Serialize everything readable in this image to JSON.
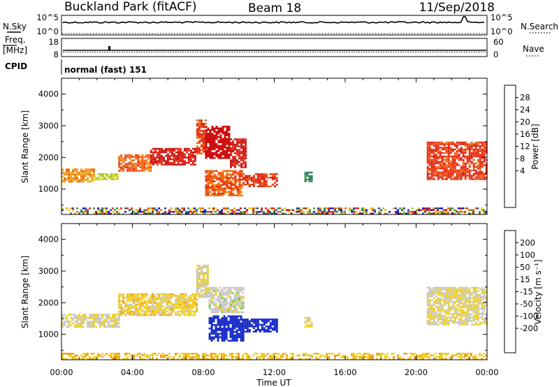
{
  "header": {
    "title": "Buckland Park (fitACF)",
    "beam": "Beam 18",
    "date": "11/Sep/2018"
  },
  "top_panels": {
    "nsky_label": "N.Sky",
    "nsky_ticks": [
      "10^5",
      "10^0"
    ],
    "nsearch_label": "N.Search",
    "nsearch_ticks": [
      "10^5",
      "10^0"
    ],
    "freq_label": "Freq.",
    "freq_unit": "[MHz]",
    "freq_ticks": [
      "18",
      "8"
    ],
    "nave_label": "Nave",
    "nave_ticks": [
      "60",
      "0"
    ],
    "cpid_label": "CPID",
    "cpid_text": "normal (fast) 151"
  },
  "chart_data": [
    {
      "type": "heatmap",
      "name": "power-panel",
      "ylabel": "Slant Range [km]",
      "ylim": [
        200,
        4500
      ],
      "y_ticks": [
        1000,
        2000,
        3000,
        4000
      ],
      "xlim": [
        0,
        24
      ],
      "x_ticks": [
        "00:00",
        "04:00",
        "08:00",
        "12:00",
        "16:00",
        "20:00",
        "00:00"
      ],
      "xlabel": "Time UT",
      "colorbar": {
        "label": "Power [dB]",
        "ticks": [
          "4",
          "8",
          "12",
          "16",
          "20",
          "24",
          "28"
        ],
        "colors": [
          "#1010ee",
          "#2a3fb0",
          "#2b7a6b",
          "#40a040",
          "#9ccc3c",
          "#f0d020",
          "#f0a020",
          "#ee6618",
          "#e62c14",
          "#cc1010"
        ]
      },
      "echo_regions": [
        {
          "t": [
            0.0,
            1.8
          ],
          "range": [
            1250,
            1650
          ],
          "value": 20
        },
        {
          "t": [
            1.8,
            3.2
          ],
          "range": [
            1300,
            1500
          ],
          "value": 16
        },
        {
          "t": [
            3.2,
            5.0
          ],
          "range": [
            1550,
            2100
          ],
          "value": 22
        },
        {
          "t": [
            5.0,
            7.6
          ],
          "range": [
            1800,
            2300
          ],
          "value": 26
        },
        {
          "t": [
            7.6,
            8.1
          ],
          "range": [
            2100,
            3200
          ],
          "value": 24
        },
        {
          "t": [
            8.1,
            9.5
          ],
          "range": [
            2000,
            3000
          ],
          "value": 28
        },
        {
          "t": [
            9.5,
            10.4
          ],
          "range": [
            1700,
            2600
          ],
          "value": 26
        },
        {
          "t": [
            8.1,
            10.2
          ],
          "range": [
            800,
            1600
          ],
          "value": 22
        },
        {
          "t": [
            10.2,
            12.2
          ],
          "range": [
            1100,
            1500
          ],
          "value": 24
        },
        {
          "t": [
            13.7,
            14.1
          ],
          "range": [
            1250,
            1550
          ],
          "value": 10
        },
        {
          "t": [
            20.6,
            24.0
          ],
          "range": [
            1300,
            2500
          ],
          "value": 24
        },
        {
          "t": [
            0.0,
            24.0
          ],
          "range": [
            200,
            420
          ],
          "value": 12
        }
      ]
    },
    {
      "type": "heatmap",
      "name": "velocity-panel",
      "ylabel": "Slant Range [km]",
      "ylim": [
        200,
        4500
      ],
      "y_ticks": [
        1000,
        2000,
        3000,
        4000
      ],
      "xlim": [
        0,
        24
      ],
      "x_ticks": [
        "00:00",
        "04:00",
        "08:00",
        "12:00",
        "16:00",
        "20:00",
        "00:00"
      ],
      "xlabel": "Time UT",
      "colorbar": {
        "label": "Velocity [m s⁻¹]",
        "ticks": [
          "200",
          "100",
          "50",
          "15",
          "-15",
          "-50",
          "-100",
          "-200"
        ],
        "colors": [
          "#1a2ec8",
          "#2f63a0",
          "#2a8a55",
          "#6cc83c",
          "#c8c8c8",
          "#f0d020",
          "#f0a020",
          "#ee6618",
          "#e62c14",
          "#e01010"
        ]
      },
      "echo_regions": [
        {
          "t": [
            0.0,
            3.2
          ],
          "range": [
            1250,
            1650
          ],
          "value": 0
        },
        {
          "t": [
            3.2,
            7.6
          ],
          "range": [
            1600,
            2300
          ],
          "value": -20
        },
        {
          "t": [
            7.6,
            8.3
          ],
          "range": [
            2200,
            3200
          ],
          "value": 0
        },
        {
          "t": [
            8.3,
            10.3
          ],
          "range": [
            1700,
            2500
          ],
          "value": 20
        },
        {
          "t": [
            8.3,
            10.2
          ],
          "range": [
            800,
            1600
          ],
          "value": 200
        },
        {
          "t": [
            10.2,
            12.2
          ],
          "range": [
            1100,
            1500
          ],
          "value": 200
        },
        {
          "t": [
            13.7,
            14.1
          ],
          "range": [
            1250,
            1550
          ],
          "value": 0
        },
        {
          "t": [
            20.6,
            24.0
          ],
          "range": [
            1300,
            2500
          ],
          "value": 0
        },
        {
          "t": [
            0.0,
            24.0
          ],
          "range": [
            200,
            420
          ],
          "value": -30
        }
      ]
    }
  ]
}
